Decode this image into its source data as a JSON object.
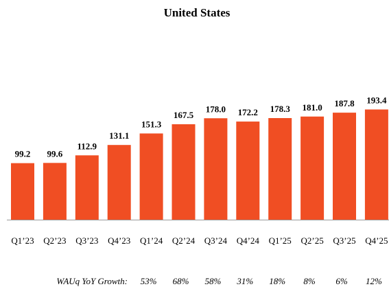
{
  "chart_data": {
    "type": "bar",
    "title": "United States",
    "categories": [
      "Q1’23",
      "Q2’23",
      "Q3’23",
      "Q4’23",
      "Q1’24",
      "Q2’24",
      "Q3’24",
      "Q4’24",
      "Q1’25",
      "Q2’25",
      "Q3’25",
      "Q4’25"
    ],
    "values": [
      99.2,
      99.6,
      112.9,
      131.1,
      151.3,
      167.5,
      178.0,
      172.2,
      178.3,
      181.0,
      187.8,
      193.4
    ],
    "value_labels": [
      "99.2",
      "99.6",
      "112.9",
      "131.1",
      "151.3",
      "167.5",
      "178.0",
      "172.2",
      "178.3",
      "181.0",
      "187.8",
      "193.4"
    ],
    "color": "#f04e23",
    "ylim": [
      0,
      200
    ],
    "growth": {
      "label": "WAUq YoY Growth:",
      "values": [
        null,
        null,
        null,
        null,
        53,
        68,
        58,
        31,
        18,
        8,
        6,
        12
      ],
      "value_labels": [
        null,
        null,
        null,
        null,
        "53%",
        "68%",
        "58%",
        "31%",
        "18%",
        "8%",
        "6%",
        "12%"
      ]
    }
  }
}
